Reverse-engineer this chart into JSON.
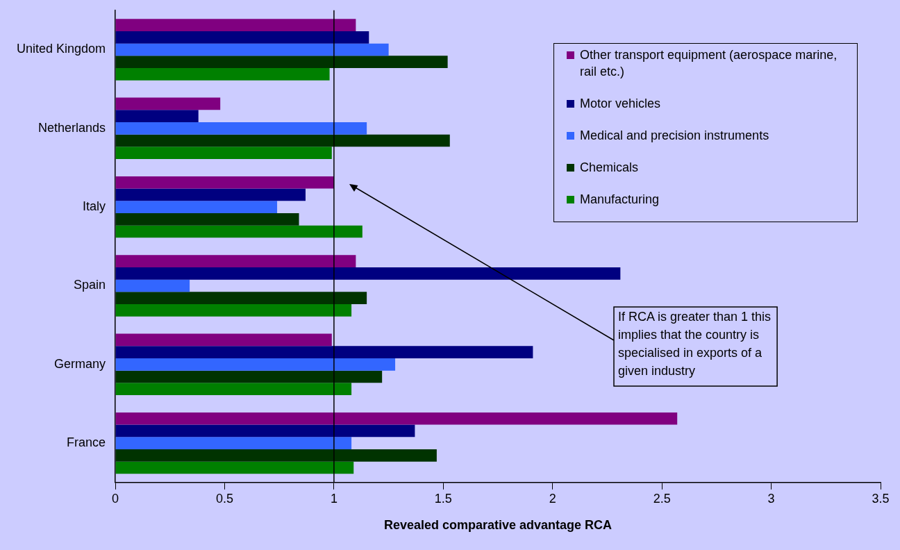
{
  "chart_data": {
    "type": "bar",
    "orientation": "horizontal",
    "xlabel": "Revealed comparative advantage RCA",
    "categories": [
      "United Kingdom",
      "Netherlands",
      "Italy",
      "Spain",
      "Germany",
      "France"
    ],
    "series": [
      {
        "name": "Other transport equipment (aerospace marine, rail etc.)",
        "color": "#800080",
        "values": [
          1.1,
          0.48,
          1.0,
          1.1,
          0.99,
          2.57
        ]
      },
      {
        "name": "Motor vehicles",
        "color": "#000080",
        "values": [
          1.16,
          0.38,
          0.87,
          2.31,
          1.91,
          1.37
        ]
      },
      {
        "name": "Medical and precision instruments",
        "color": "#3366ff",
        "values": [
          1.25,
          1.15,
          0.74,
          0.34,
          1.28,
          1.08
        ]
      },
      {
        "name": "Chemicals",
        "color": "#003300",
        "values": [
          1.52,
          1.53,
          0.84,
          1.15,
          1.22,
          1.47
        ]
      },
      {
        "name": "Manufacturing",
        "color": "#008000",
        "values": [
          0.98,
          0.99,
          1.13,
          1.08,
          1.08,
          1.09
        ]
      }
    ],
    "xlim": [
      0,
      3.5
    ],
    "xticks": [
      0,
      0.5,
      1,
      1.5,
      2,
      2.5,
      3,
      3.5
    ],
    "ref_lines": [
      {
        "axis": "x",
        "value": 1,
        "color": "#000000"
      }
    ],
    "annotations": [
      "If RCA is greater than 1 this implies that the country is specialised in exports of a given industry"
    ],
    "grid": false,
    "legend": "top right"
  }
}
